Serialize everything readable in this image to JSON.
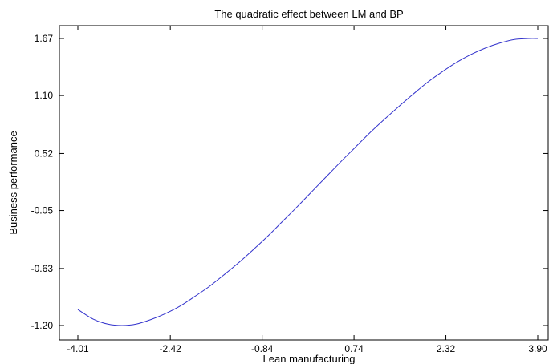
{
  "chart_data": {
    "type": "line",
    "title": "The quadratic effect between LM and BP",
    "xlabel": "Lean manufacturing",
    "ylabel": "Business performance",
    "xlim": [
      -4.01,
      3.9
    ],
    "ylim": [
      -1.2,
      1.67
    ],
    "xticks": [
      "-4.01",
      "-2.42",
      "-0.84",
      "0.74",
      "2.32",
      "3.90"
    ],
    "yticks": [
      "-1.20",
      "-0.63",
      "-0.05",
      "0.52",
      "1.10",
      "1.67"
    ],
    "grid": false,
    "line_color": "#3333cc",
    "series": [
      {
        "x": [
          -4.01,
          -3.75,
          -3.5,
          -3.25,
          -3.0,
          -2.75,
          -2.5,
          -2.25,
          -2.0,
          -1.75,
          -1.5,
          -1.25,
          -1.0,
          -0.75,
          -0.5,
          -0.25,
          0.0,
          0.25,
          0.5,
          0.75,
          1.0,
          1.25,
          1.5,
          1.75,
          2.0,
          2.25,
          2.5,
          2.75,
          3.0,
          3.25,
          3.5,
          3.75,
          3.9
        ],
        "y": [
          -1.04,
          -1.135,
          -1.185,
          -1.2,
          -1.185,
          -1.14,
          -1.08,
          -1.005,
          -0.91,
          -0.81,
          -0.695,
          -0.575,
          -0.445,
          -0.31,
          -0.165,
          -0.02,
          0.13,
          0.28,
          0.43,
          0.575,
          0.72,
          0.855,
          0.985,
          1.11,
          1.23,
          1.335,
          1.43,
          1.51,
          1.575,
          1.625,
          1.66,
          1.67,
          1.67
        ]
      }
    ]
  }
}
